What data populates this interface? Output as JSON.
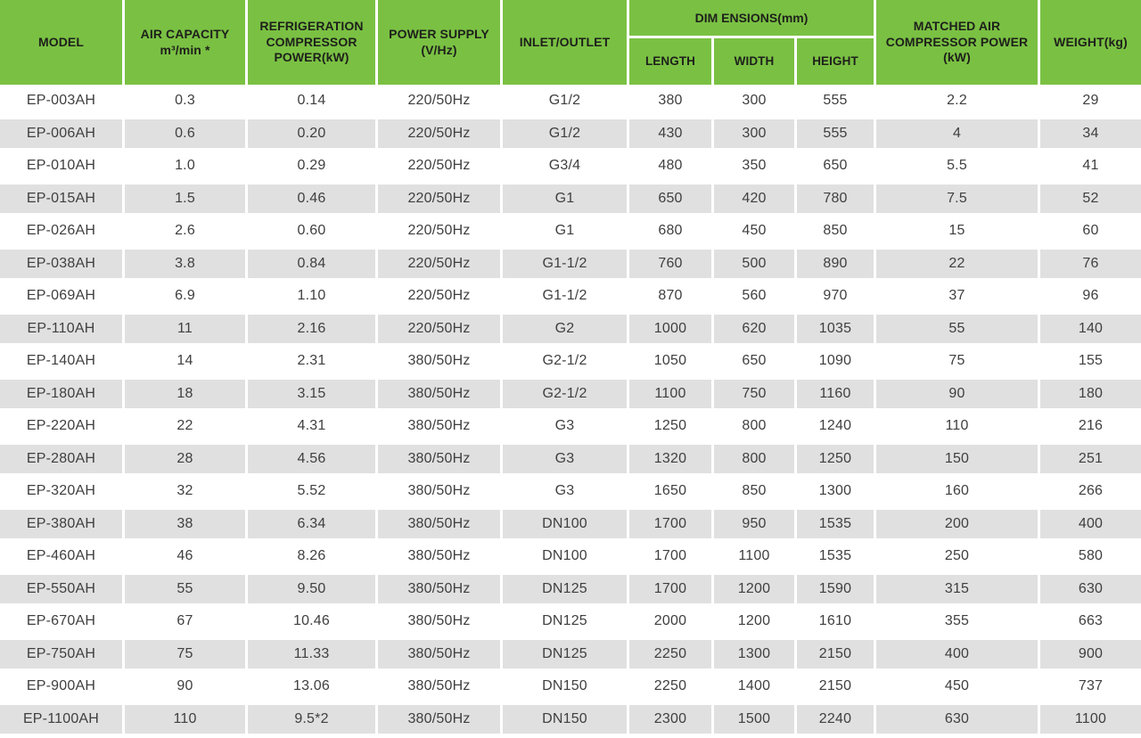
{
  "colors": {
    "accent_green": "#7ac143",
    "stripe_gray": "#e0e0e0",
    "header_text": "#1e201b",
    "body_text": "#3f3f3f"
  },
  "table": {
    "header": {
      "model": "MODEL",
      "air_capacity": "AIR CAPACITY\nm³/min *",
      "refrigeration": "REFRIGERATION\nCOMPRESSOR\nPOWER(kW)",
      "power_supply": "POWER SUPPLY\n(V/Hz)",
      "inlet_outlet": "INLET/OUTLET",
      "dimensions_group": "DIM ENSIONS(mm)",
      "length": "LENGTH",
      "width": "WIDTH",
      "height": "HEIGHT",
      "matched_power": "MATCHED AIR\nCOMPRESSOR POWER\n(kW)",
      "weight": "WEIGHT(kg)"
    },
    "rows": [
      [
        "EP-003AH",
        "0.3",
        "0.14",
        "220/50Hz",
        "G1/2",
        "380",
        "300",
        "555",
        "2.2",
        "29"
      ],
      [
        "EP-006AH",
        "0.6",
        "0.20",
        "220/50Hz",
        "G1/2",
        "430",
        "300",
        "555",
        "4",
        "34"
      ],
      [
        "EP-010AH",
        "1.0",
        "0.29",
        "220/50Hz",
        "G3/4",
        "480",
        "350",
        "650",
        "5.5",
        "41"
      ],
      [
        "EP-015AH",
        "1.5",
        "0.46",
        "220/50Hz",
        "G1",
        "650",
        "420",
        "780",
        "7.5",
        "52"
      ],
      [
        "EP-026AH",
        "2.6",
        "0.60",
        "220/50Hz",
        "G1",
        "680",
        "450",
        "850",
        "15",
        "60"
      ],
      [
        "EP-038AH",
        "3.8",
        "0.84",
        "220/50Hz",
        "G1-1/2",
        "760",
        "500",
        "890",
        "22",
        "76"
      ],
      [
        "EP-069AH",
        "6.9",
        "1.10",
        "220/50Hz",
        "G1-1/2",
        "870",
        "560",
        "970",
        "37",
        "96"
      ],
      [
        "EP-110AH",
        "11",
        "2.16",
        "220/50Hz",
        "G2",
        "1000",
        "620",
        "1035",
        "55",
        "140"
      ],
      [
        "EP-140AH",
        "14",
        "2.31",
        "380/50Hz",
        "G2-1/2",
        "1050",
        "650",
        "1090",
        "75",
        "155"
      ],
      [
        "EP-180AH",
        "18",
        "3.15",
        "380/50Hz",
        "G2-1/2",
        "1100",
        "750",
        "1160",
        "90",
        "180"
      ],
      [
        "EP-220AH",
        "22",
        "4.31",
        "380/50Hz",
        "G3",
        "1250",
        "800",
        "1240",
        "110",
        "216"
      ],
      [
        "EP-280AH",
        "28",
        "4.56",
        "380/50Hz",
        "G3",
        "1320",
        "800",
        "1250",
        "150",
        "251"
      ],
      [
        "EP-320AH",
        "32",
        "5.52",
        "380/50Hz",
        "G3",
        "1650",
        "850",
        "1300",
        "160",
        "266"
      ],
      [
        "EP-380AH",
        "38",
        "6.34",
        "380/50Hz",
        "DN100",
        "1700",
        "950",
        "1535",
        "200",
        "400"
      ],
      [
        "EP-460AH",
        "46",
        "8.26",
        "380/50Hz",
        "DN100",
        "1700",
        "1100",
        "1535",
        "250",
        "580"
      ],
      [
        "EP-550AH",
        "55",
        "9.50",
        "380/50Hz",
        "DN125",
        "1700",
        "1200",
        "1590",
        "315",
        "630"
      ],
      [
        "EP-670AH",
        "67",
        "10.46",
        "380/50Hz",
        "DN125",
        "2000",
        "1200",
        "1610",
        "355",
        "663"
      ],
      [
        "EP-750AH",
        "75",
        "11.33",
        "380/50Hz",
        "DN125",
        "2250",
        "1300",
        "2150",
        "400",
        "900"
      ],
      [
        "EP-900AH",
        "90",
        "13.06",
        "380/50Hz",
        "DN150",
        "2250",
        "1400",
        "2150",
        "450",
        "737"
      ],
      [
        "EP-1100AH",
        "110",
        "9.5*2",
        "380/50Hz",
        "DN150",
        "2300",
        "1500",
        "2240",
        "630",
        "1100"
      ]
    ]
  }
}
